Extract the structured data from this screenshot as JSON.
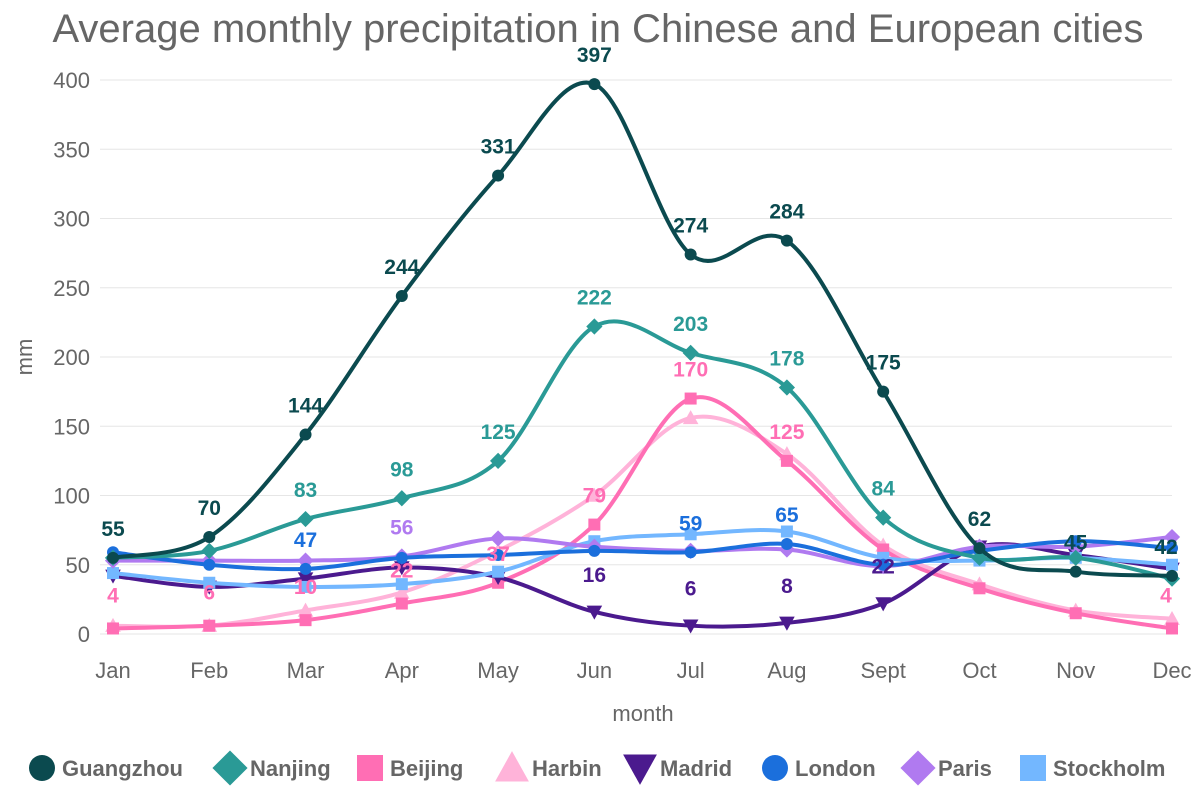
{
  "chart_data": {
    "type": "line",
    "title": "Average monthly precipitation in Chinese and European cities",
    "xlabel": "month",
    "ylabel": "mm",
    "ylim": [
      0,
      400
    ],
    "yticks": [
      0,
      50,
      100,
      150,
      200,
      250,
      300,
      350,
      400
    ],
    "grid": true,
    "legend_position": "bottom",
    "categories": [
      "Jan",
      "Feb",
      "Mar",
      "Apr",
      "May",
      "Jun",
      "Jul",
      "Aug",
      "Sept",
      "Oct",
      "Nov",
      "Dec"
    ],
    "series": [
      {
        "name": "Guangzhou",
        "color": "#0b4a4f",
        "marker": "circle",
        "values": [
          55,
          70,
          144,
          244,
          331,
          397,
          274,
          284,
          175,
          62,
          45,
          42
        ],
        "labels": [
          "55",
          "70",
          "144",
          "244",
          "331",
          "397",
          "274",
          "284",
          "175",
          "62",
          "45",
          "42"
        ]
      },
      {
        "name": "Nanjing",
        "color": "#2a9a96",
        "marker": "diamond",
        "values": [
          55,
          60,
          83,
          98,
          125,
          222,
          203,
          178,
          84,
          55,
          55,
          40
        ],
        "labels": [
          "",
          "",
          "83",
          "98",
          "125",
          "222",
          "203",
          "178",
          "84",
          "",
          "",
          ""
        ]
      },
      {
        "name": "Beijing",
        "color": "#ff6eb4",
        "marker": "square",
        "values": [
          4,
          6,
          10,
          22,
          37,
          79,
          170,
          125,
          61,
          33,
          15,
          4
        ],
        "labels": [
          "4",
          "6",
          "10",
          "22",
          "37",
          "79",
          "170",
          "125",
          "",
          "",
          "",
          "4"
        ]
      },
      {
        "name": "Harbin",
        "color": "#ffb3d9",
        "marker": "triangle",
        "values": [
          6,
          6,
          17,
          30,
          60,
          100,
          156,
          130,
          64,
          36,
          17,
          11
        ],
        "labels": [
          "",
          "",
          "",
          "",
          "",
          "",
          "",
          "",
          "",
          "",
          "",
          ""
        ]
      },
      {
        "name": "Madrid",
        "color": "#4b1a8e",
        "marker": "triangle-down",
        "values": [
          42,
          34,
          40,
          48,
          41,
          16,
          6,
          8,
          22,
          63,
          57,
          47
        ],
        "labels": [
          "",
          "",
          "",
          "",
          "",
          "16",
          "6",
          "8",
          "22",
          "",
          "",
          ""
        ]
      },
      {
        "name": "London",
        "color": "#1b6fdc",
        "marker": "circle",
        "values": [
          59,
          50,
          47,
          55,
          57,
          60,
          59,
          65,
          50,
          60,
          67,
          62
        ],
        "labels": [
          "",
          "",
          "47",
          "",
          "",
          "",
          "59",
          "65",
          "",
          "",
          "",
          ""
        ]
      },
      {
        "name": "Paris",
        "color": "#b07af0",
        "marker": "diamond",
        "values": [
          53,
          53,
          53,
          56,
          69,
          63,
          60,
          61,
          49,
          63,
          63,
          70
        ],
        "labels": [
          "",
          "",
          "",
          "56",
          "",
          "",
          "",
          "",
          "",
          "",
          "",
          ""
        ]
      },
      {
        "name": "Stockholm",
        "color": "#73b7ff",
        "marker": "square",
        "values": [
          44,
          37,
          34,
          36,
          45,
          67,
          72,
          74,
          55,
          53,
          55,
          50
        ],
        "labels": [
          "",
          "",
          "",
          "",
          "",
          "",
          "",
          "",
          "",
          "",
          "",
          ""
        ]
      }
    ]
  }
}
